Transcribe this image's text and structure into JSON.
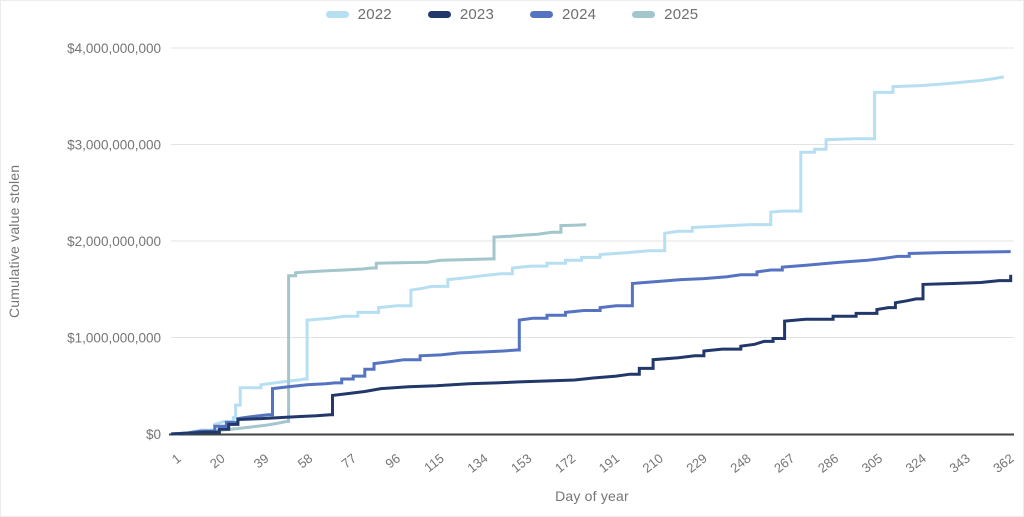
{
  "chart_data": {
    "type": "line",
    "line_style": "step",
    "title": "",
    "xlabel": "Day of year",
    "ylabel": "Cumulative value stolen",
    "legend_position": "top",
    "grid": true,
    "xlim": [
      1,
      366
    ],
    "ylim": [
      0,
      4000000000
    ],
    "x_ticks": [
      1,
      20,
      39,
      58,
      77,
      96,
      115,
      134,
      153,
      172,
      191,
      210,
      229,
      248,
      267,
      286,
      305,
      324,
      343,
      362
    ],
    "y_ticks": [
      {
        "value": 0,
        "label": "$0"
      },
      {
        "value": 1,
        "label": "$1,000,000,000"
      },
      {
        "value": 2,
        "label": "$2,000,000,000"
      },
      {
        "value": 3,
        "label": "$3,000,000,000"
      },
      {
        "value": 4,
        "label": "$4,000,000,000"
      }
    ],
    "value_unit": "USD (points stored in billions of dollars, x = day of year)",
    "series": [
      {
        "name": "2022",
        "color": "#b7dff2",
        "points": [
          [
            1,
            0
          ],
          [
            8,
            0.01
          ],
          [
            14,
            0.04
          ],
          [
            20,
            0.1
          ],
          [
            24,
            0.13
          ],
          [
            28,
            0.17
          ],
          [
            29,
            0.3
          ],
          [
            31,
            0.48
          ],
          [
            40,
            0.51
          ],
          [
            46,
            0.53
          ],
          [
            53,
            0.55
          ],
          [
            56,
            0.56
          ],
          [
            59,
            0.57
          ],
          [
            60,
            1.18
          ],
          [
            70,
            1.2
          ],
          [
            76,
            1.22
          ],
          [
            82,
            1.26
          ],
          [
            91,
            1.31
          ],
          [
            99,
            1.33
          ],
          [
            105,
            1.49
          ],
          [
            110,
            1.51
          ],
          [
            114,
            1.53
          ],
          [
            121,
            1.6
          ],
          [
            129,
            1.62
          ],
          [
            136,
            1.64
          ],
          [
            144,
            1.66
          ],
          [
            149,
            1.72
          ],
          [
            157,
            1.74
          ],
          [
            164,
            1.77
          ],
          [
            172,
            1.8
          ],
          [
            179,
            1.83
          ],
          [
            187,
            1.86
          ],
          [
            199,
            1.88
          ],
          [
            208,
            1.9
          ],
          [
            215,
            2.08
          ],
          [
            221,
            2.1
          ],
          [
            227,
            2.14
          ],
          [
            243,
            2.16
          ],
          [
            252,
            2.17
          ],
          [
            261,
            2.3
          ],
          [
            266,
            2.31
          ],
          [
            274,
            2.92
          ],
          [
            280,
            2.95
          ],
          [
            285,
            3.05
          ],
          [
            297,
            3.06
          ],
          [
            306,
            3.54
          ],
          [
            314,
            3.6
          ],
          [
            326,
            3.61
          ],
          [
            337,
            3.63
          ],
          [
            346,
            3.65
          ],
          [
            351,
            3.66
          ],
          [
            357,
            3.68
          ],
          [
            362,
            3.7
          ]
        ]
      },
      {
        "name": "2023",
        "color": "#22386b",
        "points": [
          [
            1,
            0
          ],
          [
            10,
            0.01
          ],
          [
            16,
            0.02
          ],
          [
            22,
            0.05
          ],
          [
            26,
            0.1
          ],
          [
            30,
            0.15
          ],
          [
            40,
            0.16
          ],
          [
            48,
            0.17
          ],
          [
            56,
            0.18
          ],
          [
            64,
            0.19
          ],
          [
            70,
            0.2
          ],
          [
            71,
            0.4
          ],
          [
            78,
            0.42
          ],
          [
            85,
            0.44
          ],
          [
            92,
            0.47
          ],
          [
            104,
            0.49
          ],
          [
            116,
            0.5
          ],
          [
            130,
            0.52
          ],
          [
            142,
            0.53
          ],
          [
            152,
            0.54
          ],
          [
            165,
            0.55
          ],
          [
            176,
            0.56
          ],
          [
            184,
            0.58
          ],
          [
            194,
            0.6
          ],
          [
            200,
            0.62
          ],
          [
            204,
            0.68
          ],
          [
            210,
            0.77
          ],
          [
            221,
            0.79
          ],
          [
            228,
            0.81
          ],
          [
            232,
            0.86
          ],
          [
            240,
            0.88
          ],
          [
            248,
            0.91
          ],
          [
            254,
            0.93
          ],
          [
            258,
            0.96
          ],
          [
            262,
            0.99
          ],
          [
            267,
            1.17
          ],
          [
            276,
            1.19
          ],
          [
            288,
            1.22
          ],
          [
            298,
            1.25
          ],
          [
            307,
            1.29
          ],
          [
            312,
            1.31
          ],
          [
            315,
            1.36
          ],
          [
            320,
            1.38
          ],
          [
            324,
            1.4
          ],
          [
            327,
            1.55
          ],
          [
            340,
            1.56
          ],
          [
            352,
            1.57
          ],
          [
            360,
            1.59
          ],
          [
            365,
            1.65
          ]
        ]
      },
      {
        "name": "2024",
        "color": "#5573c1",
        "points": [
          [
            1,
            0
          ],
          [
            8,
            0.01
          ],
          [
            14,
            0.03
          ],
          [
            20,
            0.08
          ],
          [
            25,
            0.12
          ],
          [
            30,
            0.16
          ],
          [
            36,
            0.18
          ],
          [
            43,
            0.2
          ],
          [
            45,
            0.47
          ],
          [
            52,
            0.49
          ],
          [
            60,
            0.51
          ],
          [
            68,
            0.52
          ],
          [
            72,
            0.53
          ],
          [
            75,
            0.57
          ],
          [
            80,
            0.6
          ],
          [
            85,
            0.67
          ],
          [
            89,
            0.73
          ],
          [
            96,
            0.75
          ],
          [
            102,
            0.77
          ],
          [
            109,
            0.81
          ],
          [
            118,
            0.82
          ],
          [
            126,
            0.84
          ],
          [
            136,
            0.85
          ],
          [
            145,
            0.86
          ],
          [
            151,
            0.87
          ],
          [
            152,
            1.18
          ],
          [
            158,
            1.2
          ],
          [
            164,
            1.23
          ],
          [
            172,
            1.26
          ],
          [
            180,
            1.28
          ],
          [
            187,
            1.31
          ],
          [
            194,
            1.33
          ],
          [
            201,
            1.56
          ],
          [
            212,
            1.58
          ],
          [
            222,
            1.6
          ],
          [
            232,
            1.61
          ],
          [
            242,
            1.63
          ],
          [
            248,
            1.65
          ],
          [
            255,
            1.68
          ],
          [
            261,
            1.7
          ],
          [
            266,
            1.73
          ],
          [
            277,
            1.75
          ],
          [
            286,
            1.77
          ],
          [
            291,
            1.78
          ],
          [
            303,
            1.8
          ],
          [
            310,
            1.82
          ],
          [
            316,
            1.84
          ],
          [
            321,
            1.87
          ],
          [
            335,
            1.88
          ],
          [
            350,
            1.885
          ],
          [
            365,
            1.89
          ]
        ]
      },
      {
        "name": "2025",
        "color": "#a3c6cd",
        "points": [
          [
            1,
            0
          ],
          [
            10,
            0.01
          ],
          [
            18,
            0.03
          ],
          [
            27,
            0.05
          ],
          [
            35,
            0.07
          ],
          [
            42,
            0.09
          ],
          [
            47,
            0.11
          ],
          [
            51,
            0.13
          ],
          [
            52,
            1.64
          ],
          [
            55,
            1.67
          ],
          [
            60,
            1.68
          ],
          [
            68,
            1.69
          ],
          [
            76,
            1.7
          ],
          [
            84,
            1.71
          ],
          [
            88,
            1.72
          ],
          [
            90,
            1.77
          ],
          [
            100,
            1.775
          ],
          [
            112,
            1.78
          ],
          [
            118,
            1.8
          ],
          [
            127,
            1.805
          ],
          [
            134,
            1.81
          ],
          [
            140,
            1.815
          ],
          [
            141,
            2.04
          ],
          [
            148,
            2.05
          ],
          [
            153,
            2.06
          ],
          [
            160,
            2.07
          ],
          [
            166,
            2.09
          ],
          [
            170,
            2.16
          ],
          [
            177,
            2.165
          ],
          [
            181,
            2.17
          ]
        ]
      }
    ],
    "colors": {
      "gridline": "#e3e3e3",
      "axis_line": "#424242",
      "tick_text": "#757575",
      "axis_title_text": "#757575",
      "legend_text": "#6e6e6e",
      "background": "#ffffff"
    }
  }
}
